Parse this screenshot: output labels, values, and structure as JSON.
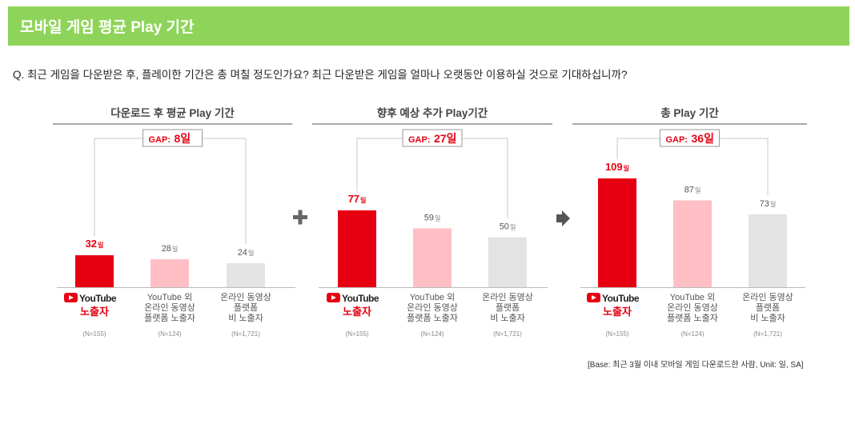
{
  "header": {
    "title": "모바일 게임 평균 Play 기간"
  },
  "question": "Q. 최근 게임을 다운받은 후, 플레이한 기간은 총 며칠 정도인가요? 최근 다운받은 게임을 얼마나 오랫동안 이용하실 것으로 기대하십니까?",
  "base_note": "[Base: 최근 3월 이내 모바일 게임 다운로드한 사람, Unit: 일, SA]",
  "colors": {
    "header": "#8fd45a",
    "red": "#e60012",
    "pink": "#ffbfc4",
    "gray": "#e3e3e3"
  },
  "operators": [
    {
      "symbol": "+"
    },
    {
      "symbol": "➡"
    }
  ],
  "chart_data": [
    {
      "type": "bar",
      "title": "다운로드 후 평균 Play 기간",
      "gap_label": "GAP:",
      "gap_value": "8일",
      "unit": "일",
      "ylim": [
        0,
        109
      ],
      "categories": [
        {
          "brand": "YouTube",
          "lines": [
            "노출자"
          ],
          "n": "(N=155)",
          "highlight": true
        },
        {
          "lines": [
            "YouTube 외",
            "온라인 동영상",
            "플랫폼 노출자"
          ],
          "n": "(N=124)"
        },
        {
          "lines": [
            "온라인 동영상",
            "플랫폼",
            "비 노출자"
          ],
          "n": "(N=1,721)"
        }
      ],
      "values": [
        32,
        28,
        24
      ]
    },
    {
      "type": "bar",
      "title": "향후 예상 추가 Play기간",
      "gap_label": "GAP:",
      "gap_value": "27일",
      "unit": "일",
      "ylim": [
        0,
        109
      ],
      "categories": [
        {
          "brand": "YouTube",
          "lines": [
            "노출자"
          ],
          "n": "(N=155)",
          "highlight": true
        },
        {
          "lines": [
            "YouTube 외",
            "온라인 동영상",
            "플랫폼 노출자"
          ],
          "n": "(N=124)"
        },
        {
          "lines": [
            "온라인 동영상",
            "플랫폼",
            "비 노출자"
          ],
          "n": "(N=1,721)"
        }
      ],
      "values": [
        77,
        59,
        50
      ]
    },
    {
      "type": "bar",
      "title": "총 Play 기간",
      "gap_label": "GAP:",
      "gap_value": "36일",
      "unit": "일",
      "ylim": [
        0,
        109
      ],
      "categories": [
        {
          "brand": "YouTube",
          "lines": [
            "노출자"
          ],
          "n": "(N=155)",
          "highlight": true
        },
        {
          "lines": [
            "YouTube 외",
            "온라인 동영상",
            "플랫폼 노출자"
          ],
          "n": "(N=124)"
        },
        {
          "lines": [
            "온라인 동영상",
            "플랫폼",
            "비 노출자"
          ],
          "n": "(N=1,721)"
        }
      ],
      "values": [
        109,
        87,
        73
      ]
    }
  ]
}
